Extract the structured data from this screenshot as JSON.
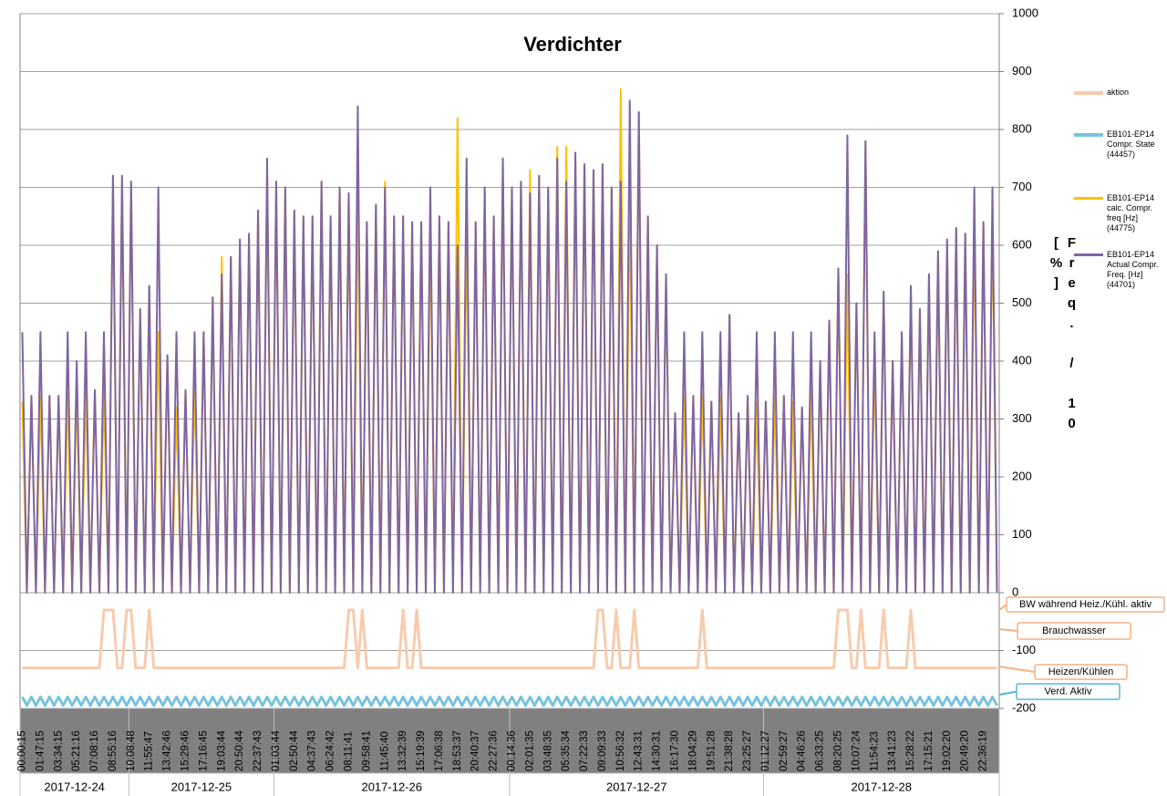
{
  "chart_data": {
    "type": "line",
    "title": "Verdichter",
    "y_label": "Freq. / 10 [%]",
    "ylim": [
      -200,
      1000
    ],
    "yticks": [
      1000,
      900,
      800,
      700,
      600,
      500,
      400,
      300,
      200,
      100,
      0,
      -100,
      -200
    ],
    "grid": true,
    "legend": "right",
    "annotations": [
      "BW während Heiz./Kühl. aktiv",
      "Brauchwasser",
      "Heizen/Kühlen",
      "Verd. Aktiv"
    ],
    "date_groups": [
      {
        "label": "2017-12-24",
        "categories": [
          "00:00:15",
          null,
          null,
          null,
          "01:47:15",
          null,
          null,
          null,
          "03:34:15",
          null,
          null,
          null,
          "05:21:16",
          null,
          null,
          null,
          "07:08:16",
          null,
          null,
          null,
          "08:55:16",
          null,
          null,
          null
        ]
      },
      {
        "label": "2017-12-25",
        "categories": [
          "10:08:48",
          null,
          null,
          null,
          "11:55:47",
          null,
          null,
          null,
          "13:42:46",
          null,
          null,
          null,
          "15:29:46",
          null,
          null,
          null,
          "17:16:45",
          null,
          null,
          null,
          "19:03:44",
          null,
          null,
          null,
          "20:50:44",
          null,
          null,
          null,
          "22:37:43",
          null,
          null,
          null
        ]
      },
      {
        "label": "2017-12-26",
        "categories": [
          "01:03:44",
          null,
          null,
          null,
          "02:50:44",
          null,
          null,
          null,
          "04:37:43",
          null,
          null,
          null,
          "06:24:42",
          null,
          null,
          null,
          "08:11:41",
          null,
          null,
          null,
          "09:58:41",
          null,
          null,
          null,
          "11:45:40",
          null,
          null,
          null,
          "13:32:39",
          null,
          null,
          null,
          "15:19:39",
          null,
          null,
          null,
          "17:06:38",
          null,
          null,
          null,
          "18:53:37",
          null,
          null,
          null,
          "20:40:37",
          null,
          null,
          null,
          "22:27:36",
          null,
          null,
          null
        ]
      },
      {
        "label": "2017-12-27",
        "categories": [
          "00:14:36",
          null,
          null,
          null,
          "02:01:35",
          null,
          null,
          null,
          "03:48:35",
          null,
          null,
          null,
          "05:35:34",
          null,
          null,
          null,
          "07:22:33",
          null,
          null,
          null,
          "09:09:33",
          null,
          null,
          null,
          "10:56:32",
          null,
          null,
          null,
          "12:43:31",
          null,
          null,
          null,
          "14:30:31",
          null,
          null,
          null,
          "16:17:30",
          null,
          null,
          null,
          "18:04:29",
          null,
          null,
          null,
          "19:51:28",
          null,
          null,
          null,
          "21:38:28",
          null,
          null,
          null,
          "23:25:27",
          null,
          null,
          null
        ]
      },
      {
        "label": "2017-12-28",
        "categories": [
          "01:12:27",
          null,
          null,
          null,
          "02:59:27",
          null,
          null,
          null,
          "04:46:26",
          null,
          null,
          null,
          "06:33:25",
          null,
          null,
          null,
          "08:20:25",
          null,
          null,
          null,
          "10:07:24",
          null,
          null,
          null,
          "11:54:23",
          null,
          null,
          null,
          "13:41:23",
          null,
          null,
          null,
          "15:28:22",
          null,
          null,
          null,
          "17:15:21",
          null,
          null,
          null,
          "19:02:20",
          null,
          null,
          null,
          "20:49:20",
          null,
          null,
          null,
          "22:36:19",
          null,
          null,
          null
        ]
      }
    ],
    "series": [
      {
        "name": "aktion",
        "color": "#f8cbad",
        "values": [
          -130,
          -130,
          -130,
          -130,
          -130,
          -130,
          -130,
          -130,
          -130,
          -130,
          -130,
          -130,
          -130,
          -130,
          -130,
          -130,
          -130,
          -130,
          -30,
          -30,
          -30,
          -130,
          -130,
          -30,
          -30,
          -130,
          -130,
          -130,
          -30,
          -130,
          -130,
          -130,
          -130,
          -130,
          -130,
          -130,
          -130,
          -130,
          -130,
          -130,
          -130,
          -130,
          -130,
          -130,
          -130,
          -130,
          -130,
          -130,
          -130,
          -130,
          -130,
          -130,
          -130,
          -130,
          -130,
          -130,
          -130,
          -130,
          -130,
          -130,
          -130,
          -130,
          -130,
          -130,
          -130,
          -130,
          -130,
          -130,
          -130,
          -130,
          -130,
          -130,
          -30,
          -30,
          -130,
          -30,
          -130,
          -130,
          -130,
          -130,
          -130,
          -130,
          -130,
          -130,
          -30,
          -130,
          -130,
          -30,
          -130,
          -130,
          -130,
          -130,
          -130,
          -130,
          -130,
          -130,
          -130,
          -130,
          -130,
          -130,
          -130,
          -130,
          -130,
          -130,
          -130,
          -130,
          -130,
          -130,
          -130,
          -130,
          -130,
          -130,
          -130,
          -130,
          -130,
          -130,
          -130,
          -130,
          -130,
          -130,
          -130,
          -130,
          -130,
          -130,
          -130,
          -130,
          -130,
          -30,
          -30,
          -130,
          -130,
          -30,
          -130,
          -130,
          -130,
          -30,
          -130,
          -130,
          -130,
          -130,
          -130,
          -130,
          -130,
          -130,
          -130,
          -130,
          -130,
          -130,
          -130,
          -130,
          -30,
          -130,
          -130,
          -130,
          -130,
          -130,
          -130,
          -130,
          -130,
          -130,
          -130,
          -130,
          -130,
          -130,
          -130,
          -130,
          -130,
          -130,
          -130,
          -130,
          -130,
          -130,
          -130,
          -130,
          -130,
          -130,
          -130,
          -130,
          -130,
          -130,
          -30,
          -30,
          -30,
          -130,
          -130,
          -30,
          -130,
          -130,
          -130,
          -130,
          -30,
          -130,
          -130,
          -130,
          -130,
          -130,
          -30,
          -130,
          -130,
          -130,
          -130,
          -130,
          -130,
          -130,
          -130,
          -130,
          -130,
          -130,
          -130,
          -130,
          -130,
          -130,
          -130,
          -130,
          -130,
          -130
        ]
      },
      {
        "name": "EB101-EP14 Compr. State (44457)",
        "color": "#79c3dd",
        "values": [
          -180,
          -195,
          -180,
          -195,
          -180,
          -195,
          -180,
          -195,
          -180,
          -195,
          -180,
          -195,
          -180,
          -195,
          -180,
          -195,
          -180,
          -195,
          -180,
          -195,
          -180,
          -195,
          -180,
          -195,
          -180,
          -195,
          -180,
          -195,
          -180,
          -195,
          -180,
          -195,
          -180,
          -195,
          -180,
          -195,
          -180,
          -195,
          -180,
          -195,
          -180,
          -195,
          -180,
          -195,
          -180,
          -195,
          -180,
          -195,
          -180,
          -195,
          -180,
          -195,
          -180,
          -195,
          -180,
          -195,
          -180,
          -195,
          -180,
          -195,
          -180,
          -195,
          -180,
          -195,
          -180,
          -195,
          -180,
          -195,
          -180,
          -195,
          -180,
          -195,
          -180,
          -195,
          -180,
          -195,
          -180,
          -195,
          -180,
          -195,
          -180,
          -195,
          -180,
          -195,
          -180,
          -195,
          -180,
          -195,
          -180,
          -195,
          -180,
          -195,
          -180,
          -195,
          -180,
          -195,
          -180,
          -195,
          -180,
          -195,
          -180,
          -195,
          -180,
          -195,
          -180,
          -195,
          -180,
          -195,
          -180,
          -195,
          -180,
          -195,
          -180,
          -195,
          -180,
          -195,
          -180,
          -195,
          -180,
          -195,
          -180,
          -195,
          -180,
          -195,
          -180,
          -195,
          -180,
          -195,
          -180,
          -195,
          -180,
          -195,
          -180,
          -195,
          -180,
          -195,
          -180,
          -195,
          -180,
          -195,
          -180,
          -195,
          -180,
          -195,
          -180,
          -195,
          -180,
          -195,
          -180,
          -195,
          -180,
          -195,
          -180,
          -195,
          -180,
          -195,
          -180,
          -195,
          -180,
          -195,
          -180,
          -195,
          -180,
          -195,
          -180,
          -195,
          -180,
          -195,
          -180,
          -195,
          -180,
          -195,
          -180,
          -195,
          -180,
          -195,
          -180,
          -195,
          -180,
          -195,
          -180,
          -195,
          -180,
          -195,
          -180,
          -195,
          -180,
          -195,
          -180,
          -195,
          -180,
          -195,
          -180,
          -195,
          -180,
          -195,
          -180,
          -195,
          -180,
          -195,
          -180,
          -195,
          -180,
          -195,
          -180,
          -195,
          -180,
          -195,
          -180,
          -195,
          -180,
          -195,
          -180,
          -195,
          -180,
          -195
        ]
      },
      {
        "name": "EB101-EP14 calc. Compr. freq [Hz] (44775)",
        "color": "#ffc000",
        "values": [
          330,
          0,
          340,
          0,
          340,
          0,
          340,
          0,
          340,
          0,
          350,
          0,
          350,
          0,
          350,
          0,
          350,
          0,
          350,
          0,
          720,
          0,
          720,
          0,
          710,
          0,
          490,
          0,
          530,
          0,
          450,
          0,
          410,
          0,
          320,
          0,
          350,
          0,
          360,
          0,
          450,
          0,
          510,
          0,
          580,
          0,
          580,
          0,
          610,
          0,
          620,
          0,
          660,
          0,
          720,
          0,
          710,
          0,
          700,
          0,
          660,
          0,
          650,
          0,
          650,
          0,
          710,
          0,
          650,
          0,
          700,
          0,
          690,
          0,
          700,
          0,
          640,
          0,
          670,
          0,
          710,
          0,
          650,
          0,
          650,
          0,
          640,
          0,
          640,
          0,
          630,
          0,
          650,
          0,
          640,
          0,
          820,
          0,
          630,
          0,
          640,
          0,
          700,
          0,
          650,
          0,
          750,
          0,
          700,
          0,
          710,
          0,
          730,
          0,
          720,
          0,
          700,
          0,
          770,
          0,
          770,
          0,
          740,
          0,
          740,
          0,
          730,
          0,
          740,
          0,
          700,
          0,
          870,
          0,
          700,
          0,
          830,
          0,
          650,
          0,
          600,
          0,
          550,
          0,
          310,
          0,
          340,
          0,
          340,
          0,
          340,
          0,
          330,
          0,
          340,
          0,
          480,
          0,
          310,
          0,
          340,
          0,
          330,
          0,
          330,
          0,
          340,
          0,
          340,
          0,
          330,
          0,
          320,
          0,
          350,
          0,
          400,
          0,
          470,
          0,
          560,
          0,
          550,
          0,
          500,
          0,
          780,
          0,
          390,
          0,
          520,
          0,
          400,
          0,
          440,
          0,
          530,
          0,
          490,
          0,
          550,
          0,
          590,
          0,
          610,
          0,
          630,
          0,
          620,
          0,
          630,
          0,
          640,
          0,
          650,
          0
        ]
      },
      {
        "name": "EB101-EP14 Actual Compr. Freq. [Hz] (44701)",
        "color": "#8064a2",
        "values": [
          450,
          0,
          340,
          0,
          450,
          0,
          340,
          0,
          340,
          0,
          450,
          0,
          400,
          0,
          450,
          0,
          350,
          0,
          450,
          0,
          720,
          0,
          720,
          0,
          710,
          0,
          490,
          0,
          530,
          0,
          700,
          0,
          410,
          0,
          450,
          0,
          350,
          0,
          450,
          0,
          450,
          0,
          510,
          0,
          550,
          0,
          580,
          0,
          610,
          0,
          620,
          0,
          660,
          0,
          750,
          0,
          710,
          0,
          700,
          0,
          660,
          0,
          650,
          0,
          650,
          0,
          710,
          0,
          650,
          0,
          700,
          0,
          690,
          0,
          840,
          0,
          640,
          0,
          670,
          0,
          700,
          0,
          650,
          0,
          650,
          0,
          640,
          0,
          640,
          0,
          700,
          0,
          650,
          0,
          640,
          0,
          600,
          0,
          750,
          0,
          640,
          0,
          700,
          0,
          650,
          0,
          750,
          0,
          700,
          0,
          710,
          0,
          690,
          0,
          720,
          0,
          700,
          0,
          750,
          0,
          710,
          0,
          760,
          0,
          740,
          0,
          730,
          0,
          740,
          0,
          700,
          0,
          710,
          0,
          850,
          0,
          830,
          0,
          650,
          0,
          600,
          0,
          550,
          0,
          310,
          0,
          450,
          0,
          340,
          0,
          450,
          0,
          330,
          0,
          450,
          0,
          480,
          0,
          310,
          0,
          340,
          0,
          450,
          0,
          330,
          0,
          450,
          0,
          340,
          0,
          450,
          0,
          320,
          0,
          450,
          0,
          400,
          0,
          470,
          0,
          560,
          0,
          790,
          0,
          500,
          0,
          780,
          0,
          450,
          0,
          520,
          0,
          400,
          0,
          450,
          0,
          530,
          0,
          490,
          0,
          550,
          0,
          590,
          0,
          610,
          0,
          630,
          0,
          620,
          0,
          700,
          0,
          640,
          0,
          700,
          0
        ]
      }
    ]
  }
}
